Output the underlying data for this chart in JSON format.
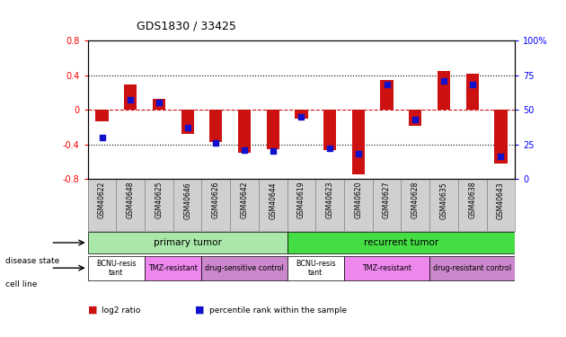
{
  "title": "GDS1830 / 33425",
  "samples": [
    "GSM40622",
    "GSM40648",
    "GSM40625",
    "GSM40646",
    "GSM40626",
    "GSM40642",
    "GSM40644",
    "GSM40619",
    "GSM40623",
    "GSM40620",
    "GSM40627",
    "GSM40628",
    "GSM40635",
    "GSM40638",
    "GSM40643"
  ],
  "log2_ratio": [
    -0.13,
    0.29,
    0.12,
    -0.28,
    -0.37,
    -0.5,
    -0.46,
    -0.1,
    -0.47,
    -0.75,
    0.34,
    -0.19,
    0.45,
    0.42,
    -0.62
  ],
  "percentile": [
    30,
    57,
    55,
    37,
    26,
    21,
    20,
    45,
    22,
    18,
    68,
    43,
    71,
    68,
    16
  ],
  "ylim": [
    -0.8,
    0.8
  ],
  "bar_color": "#cc1111",
  "dot_color": "#1111cc",
  "dashed_color": "#cc1111",
  "bg_color": "#ffffff",
  "plot_bg": "#ffffff",
  "sample_bg": "#d0d0d0",
  "disease_state_groups": [
    {
      "label": "primary tumor",
      "start": 0,
      "end": 7,
      "color": "#aae8aa"
    },
    {
      "label": "recurrent tumor",
      "start": 7,
      "end": 15,
      "color": "#44dd44"
    }
  ],
  "cell_line_groups": [
    {
      "label": "BCNU-resis\ntant",
      "start": 0,
      "end": 2,
      "color": "#ffffff"
    },
    {
      "label": "TMZ-resistant",
      "start": 2,
      "end": 4,
      "color": "#ee88ee"
    },
    {
      "label": "drug-sensitive control",
      "start": 4,
      "end": 7,
      "color": "#cc88cc"
    },
    {
      "label": "BCNU-resis\ntant",
      "start": 7,
      "end": 9,
      "color": "#ffffff"
    },
    {
      "label": "TMZ-resistant",
      "start": 9,
      "end": 12,
      "color": "#ee88ee"
    },
    {
      "label": "drug-resistant control",
      "start": 12,
      "end": 15,
      "color": "#cc88cc"
    }
  ],
  "legend_items": [
    {
      "label": "log2 ratio",
      "color": "#cc1111"
    },
    {
      "label": "percentile rank within the sample",
      "color": "#1111cc"
    }
  ],
  "dotted_grid": [
    0.4,
    -0.4
  ],
  "right_tick_positions": [
    0,
    25,
    50,
    75,
    100
  ],
  "right_tick_labels": [
    "0",
    "25",
    "50",
    "75",
    "100%"
  ],
  "left_tick_labels": [
    "-0.8",
    "-0.4",
    "0",
    "0.4",
    "0.8"
  ]
}
